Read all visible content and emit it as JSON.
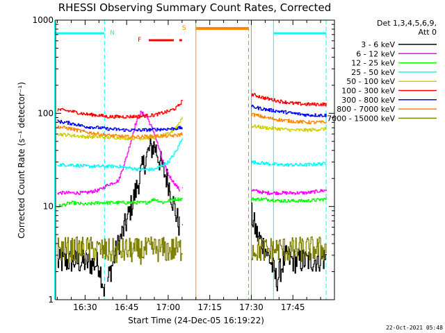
{
  "chart_data": {
    "type": "line",
    "title": "RHESSI Observing Summary Count Rates, Corrected",
    "xlabel": "Start Time (24-Dec-05 16:19:22)",
    "ylabel": "Corrected Count Rate (s⁻¹ detector⁻¹)",
    "y_scale": "log",
    "ylim": [
      1,
      1000
    ],
    "xlim": [
      "16:19:22",
      "18:00:00"
    ],
    "x_tick_labels": [
      "16:30",
      "16:45",
      "17:00",
      "17:15",
      "17:30",
      "17:45"
    ],
    "y_tick_labels": [
      "1",
      "10",
      "100",
      "1000"
    ],
    "legend_header": [
      "Det 1,3,4,5,6,9,",
      "Att 0"
    ],
    "legend_placement": "right, outside plot",
    "footer": "22-Oct-2021 05:48",
    "flag_labels": {
      "night": "N",
      "flare": "F",
      "saa": "S"
    },
    "data_gaps": [
      [
        "16:37",
        "16:38"
      ],
      [
        "17:04",
        "17:29"
      ]
    ],
    "flags": {
      "night": [
        [
          "16:19",
          "16:37"
        ],
        [
          "17:38",
          "17:57"
        ]
      ],
      "flare": [
        [
          "16:53",
          "17:02"
        ],
        [
          "17:04",
          "17:05"
        ]
      ],
      "saa": [
        [
          "17:10",
          "17:29"
        ]
      ]
    },
    "markers": {
      "night_start_dashed": [
        "16:37",
        "17:57"
      ],
      "night_end_solid": [
        "16:19",
        "17:38"
      ],
      "saa_start_solid": [
        "17:10"
      ],
      "saa_end_dashed": [
        "17:29"
      ],
      "green_solid": [
        "17:30"
      ]
    },
    "series": [
      {
        "name": "3 - 6 keV",
        "color": "#000000",
        "points": [
          [
            "16:20",
            2.5
          ],
          [
            "16:25",
            2.6
          ],
          [
            "16:30",
            2.5
          ],
          [
            "16:35",
            2.4
          ],
          [
            "16:37",
            1.2
          ],
          [
            "16:38",
            1.6
          ],
          [
            "16:42",
            4
          ],
          [
            "16:45",
            7
          ],
          [
            "16:48",
            14
          ],
          [
            "16:51",
            28
          ],
          [
            "16:53",
            40
          ],
          [
            "16:55",
            45
          ],
          [
            "16:57",
            30
          ],
          [
            "17:00",
            18
          ],
          [
            "17:02",
            10
          ],
          [
            "17:04",
            6
          ],
          [
            "17:05",
            7
          ],
          [
            "17:30",
            8
          ],
          [
            "17:32",
            5
          ],
          [
            "17:35",
            3.5
          ],
          [
            "17:37",
            2.5
          ],
          [
            "17:39",
            1.6
          ],
          [
            "17:42",
            2.8
          ],
          [
            "17:46",
            2.6
          ],
          [
            "17:50",
            2.6
          ],
          [
            "17:54",
            2.7
          ],
          [
            "17:57",
            2.8
          ]
        ]
      },
      {
        "name": "6 - 12 keV",
        "color": "#ff00ff",
        "points": [
          [
            "16:20",
            14
          ],
          [
            "16:25",
            14
          ],
          [
            "16:30",
            14
          ],
          [
            "16:35",
            15
          ],
          [
            "16:38",
            17
          ],
          [
            "16:42",
            19
          ],
          [
            "16:45",
            35
          ],
          [
            "16:48",
            75
          ],
          [
            "16:50",
            102
          ],
          [
            "16:52",
            95
          ],
          [
            "16:55",
            60
          ],
          [
            "16:58",
            30
          ],
          [
            "17:00",
            22
          ],
          [
            "17:02",
            18
          ],
          [
            "17:04",
            15
          ],
          [
            "17:05",
            16
          ],
          [
            "17:30",
            15
          ],
          [
            "17:35",
            14
          ],
          [
            "17:40",
            14
          ],
          [
            "17:45",
            14
          ],
          [
            "17:50",
            14
          ],
          [
            "17:57",
            15
          ]
        ]
      },
      {
        "name": "12 - 25 keV",
        "color": "#00ff00",
        "points": [
          [
            "16:20",
            10
          ],
          [
            "16:25",
            11
          ],
          [
            "16:30",
            10.5
          ],
          [
            "16:35",
            11
          ],
          [
            "16:38",
            11
          ],
          [
            "16:42",
            11
          ],
          [
            "16:45",
            11
          ],
          [
            "16:48",
            11
          ],
          [
            "16:52",
            11
          ],
          [
            "16:55",
            12
          ],
          [
            "16:58",
            11
          ],
          [
            "17:02",
            12
          ],
          [
            "17:05",
            12
          ],
          [
            "17:30",
            12
          ],
          [
            "17:35",
            12
          ],
          [
            "17:40",
            11.5
          ],
          [
            "17:45",
            11.5
          ],
          [
            "17:50",
            11.5
          ],
          [
            "17:57",
            12
          ]
        ]
      },
      {
        "name": "25 - 50 keV",
        "color": "#00ffff",
        "points": [
          [
            "16:20",
            28
          ],
          [
            "16:25",
            28
          ],
          [
            "16:30",
            27
          ],
          [
            "16:35",
            27
          ],
          [
            "16:38",
            27
          ],
          [
            "16:42",
            27
          ],
          [
            "16:45",
            26
          ],
          [
            "16:50",
            25
          ],
          [
            "16:55",
            25
          ],
          [
            "17:00",
            30
          ],
          [
            "17:03",
            40
          ],
          [
            "17:05",
            55
          ],
          [
            "17:30",
            30
          ],
          [
            "17:35",
            29
          ],
          [
            "17:40",
            28
          ],
          [
            "17:45",
            28
          ],
          [
            "17:50",
            28
          ],
          [
            "17:57",
            29
          ]
        ]
      },
      {
        "name": "50 - 100 keV",
        "color": "#d0d000",
        "points": [
          [
            "16:20",
            60
          ],
          [
            "16:25",
            58
          ],
          [
            "16:30",
            56
          ],
          [
            "16:35",
            56
          ],
          [
            "16:38",
            55
          ],
          [
            "16:42",
            55
          ],
          [
            "16:45",
            54
          ],
          [
            "16:50",
            54
          ],
          [
            "16:55",
            55
          ],
          [
            "17:00",
            60
          ],
          [
            "17:03",
            72
          ],
          [
            "17:05",
            90
          ],
          [
            "17:30",
            73
          ],
          [
            "17:35",
            70
          ],
          [
            "17:40",
            68
          ],
          [
            "17:45",
            66
          ],
          [
            "17:50",
            66
          ],
          [
            "17:57",
            68
          ]
        ]
      },
      {
        "name": "100 - 300 keV",
        "color": "#ff0000",
        "points": [
          [
            "16:20",
            110
          ],
          [
            "16:25",
            105
          ],
          [
            "16:30",
            98
          ],
          [
            "16:35",
            95
          ],
          [
            "16:38",
            92
          ],
          [
            "16:42",
            92
          ],
          [
            "16:45",
            92
          ],
          [
            "16:50",
            93
          ],
          [
            "16:55",
            96
          ],
          [
            "17:00",
            105
          ],
          [
            "17:03",
            115
          ],
          [
            "17:05",
            135
          ],
          [
            "17:30",
            160
          ],
          [
            "17:35",
            145
          ],
          [
            "17:40",
            135
          ],
          [
            "17:45",
            128
          ],
          [
            "17:50",
            125
          ],
          [
            "17:57",
            125
          ]
        ]
      },
      {
        "name": "300 - 800 keV",
        "color": "#0000ff",
        "points": [
          [
            "16:20",
            82
          ],
          [
            "16:25",
            78
          ],
          [
            "16:30",
            72
          ],
          [
            "16:35",
            70
          ],
          [
            "16:38",
            68
          ],
          [
            "16:42",
            67
          ],
          [
            "16:45",
            66
          ],
          [
            "16:50",
            66
          ],
          [
            "16:55",
            67
          ],
          [
            "17:00",
            68
          ],
          [
            "17:03",
            69
          ],
          [
            "17:05",
            70
          ],
          [
            "17:30",
            118
          ],
          [
            "17:35",
            110
          ],
          [
            "17:40",
            105
          ],
          [
            "17:45",
            100
          ],
          [
            "17:50",
            96
          ],
          [
            "17:57",
            95
          ]
        ]
      },
      {
        "name": "800 - 7000 keV",
        "color": "#ff8800",
        "points": [
          [
            "16:20",
            72
          ],
          [
            "16:25",
            68
          ],
          [
            "16:30",
            63
          ],
          [
            "16:35",
            60
          ],
          [
            "16:38",
            58
          ],
          [
            "16:42",
            57
          ],
          [
            "16:45",
            56
          ],
          [
            "16:50",
            56
          ],
          [
            "16:55",
            57
          ],
          [
            "17:00",
            57
          ],
          [
            "17:03",
            58
          ],
          [
            "17:05",
            60
          ],
          [
            "17:30",
            98
          ],
          [
            "17:35",
            90
          ],
          [
            "17:40",
            85
          ],
          [
            "17:45",
            82
          ],
          [
            "17:50",
            80
          ],
          [
            "17:57",
            80
          ]
        ]
      },
      {
        "name": "7000 - 15000 keV",
        "color": "#808000",
        "points": [
          [
            "16:20",
            3.5
          ],
          [
            "16:25",
            3.4
          ],
          [
            "16:30",
            3.5
          ],
          [
            "16:35",
            3.4
          ],
          [
            "16:38",
            3.3
          ],
          [
            "16:42",
            3.3
          ],
          [
            "16:45",
            3.4
          ],
          [
            "16:50",
            3.3
          ],
          [
            "16:55",
            3.5
          ],
          [
            "17:00",
            3.4
          ],
          [
            "17:05",
            3.5
          ],
          [
            "17:30",
            3.5
          ],
          [
            "17:35",
            3.4
          ],
          [
            "17:40",
            3.5
          ],
          [
            "17:45",
            3.4
          ],
          [
            "17:50",
            3.5
          ],
          [
            "17:57",
            3.5
          ]
        ]
      }
    ]
  }
}
